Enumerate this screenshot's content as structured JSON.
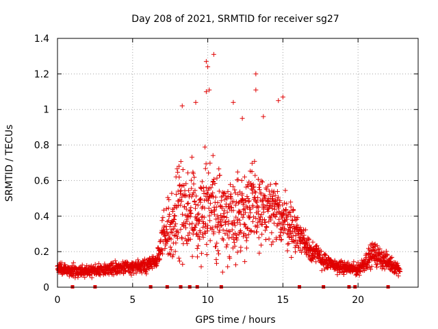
{
  "chart_data": {
    "type": "scatter",
    "title": "Day 208 of 2021, SRMTID for receiver sg27",
    "xlabel": "GPS time / hours",
    "ylabel": "SRMTID / TECUs",
    "xlim": [
      0,
      24
    ],
    "ylim": [
      0,
      1.4
    ],
    "xticks": [
      0,
      5,
      10,
      15,
      20
    ],
    "yticks": [
      0,
      0.2,
      0.4,
      0.6,
      0.8,
      1,
      1.2,
      1.4
    ],
    "xtick_labels": [
      "0",
      "5",
      "10",
      "15",
      "20"
    ],
    "ytick_labels": [
      "0",
      "0.2",
      "0.4",
      "0.6",
      "0.8",
      "1",
      "1.2",
      "1.4"
    ],
    "grid": true,
    "marker": "+",
    "color": "#e00000",
    "series": [
      {
        "name": "SRMTID",
        "profile": [
          {
            "hour": 0.0,
            "median": 0.11,
            "spread": 0.03
          },
          {
            "hour": 1.0,
            "median": 0.09,
            "spread": 0.03
          },
          {
            "hour": 2.0,
            "median": 0.09,
            "spread": 0.03
          },
          {
            "hour": 3.0,
            "median": 0.1,
            "spread": 0.03
          },
          {
            "hour": 4.0,
            "median": 0.11,
            "spread": 0.03
          },
          {
            "hour": 5.0,
            "median": 0.11,
            "spread": 0.03
          },
          {
            "hour": 6.0,
            "median": 0.12,
            "spread": 0.04
          },
          {
            "hour": 6.8,
            "median": 0.18,
            "spread": 0.05
          },
          {
            "hour": 7.0,
            "median": 0.3,
            "spread": 0.12
          },
          {
            "hour": 8.0,
            "median": 0.4,
            "spread": 0.22
          },
          {
            "hour": 9.0,
            "median": 0.42,
            "spread": 0.24
          },
          {
            "hour": 10.0,
            "median": 0.45,
            "spread": 0.28
          },
          {
            "hour": 11.0,
            "median": 0.4,
            "spread": 0.22
          },
          {
            "hour": 12.0,
            "median": 0.42,
            "spread": 0.22
          },
          {
            "hour": 13.0,
            "median": 0.45,
            "spread": 0.22
          },
          {
            "hour": 14.0,
            "median": 0.42,
            "spread": 0.18
          },
          {
            "hour": 15.0,
            "median": 0.4,
            "spread": 0.16
          },
          {
            "hour": 16.0,
            "median": 0.3,
            "spread": 0.1
          },
          {
            "hour": 17.0,
            "median": 0.2,
            "spread": 0.06
          },
          {
            "hour": 18.0,
            "median": 0.13,
            "spread": 0.04
          },
          {
            "hour": 19.0,
            "median": 0.11,
            "spread": 0.03
          },
          {
            "hour": 20.0,
            "median": 0.1,
            "spread": 0.03
          },
          {
            "hour": 21.0,
            "median": 0.19,
            "spread": 0.06
          },
          {
            "hour": 22.0,
            "median": 0.14,
            "spread": 0.04
          },
          {
            "hour": 22.8,
            "median": 0.1,
            "spread": 0.03
          }
        ],
        "peaks": [
          {
            "x": 10.4,
            "y": 1.31
          },
          {
            "x": 9.9,
            "y": 1.27
          },
          {
            "x": 10.0,
            "y": 1.24
          },
          {
            "x": 13.2,
            "y": 1.2
          },
          {
            "x": 13.2,
            "y": 1.11
          },
          {
            "x": 10.1,
            "y": 1.11
          },
          {
            "x": 9.9,
            "y": 1.1
          },
          {
            "x": 15.0,
            "y": 1.07
          },
          {
            "x": 14.7,
            "y": 1.05
          },
          {
            "x": 9.2,
            "y": 1.04
          },
          {
            "x": 11.7,
            "y": 1.04
          },
          {
            "x": 8.3,
            "y": 1.02
          },
          {
            "x": 13.7,
            "y": 0.96
          },
          {
            "x": 12.3,
            "y": 0.95
          }
        ],
        "baseline_marks": [
          1.0,
          2.5,
          6.2,
          7.3,
          8.2,
          8.8,
          9.3,
          10.9,
          16.1,
          17.7,
          19.4,
          19.8,
          22.0
        ]
      }
    ]
  }
}
